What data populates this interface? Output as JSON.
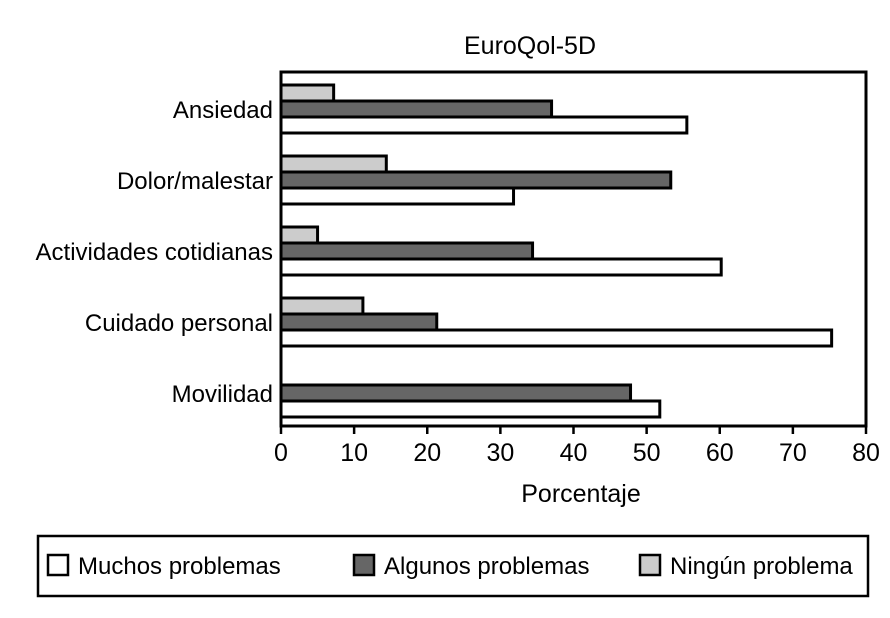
{
  "chart_data": {
    "type": "bar",
    "orientation": "horizontal",
    "title": "EuroQol-5D",
    "xlabel": "Porcentaje",
    "ylabel": "",
    "xlim": [
      0,
      80
    ],
    "xticks": [
      0,
      10,
      20,
      30,
      40,
      50,
      60,
      70,
      80
    ],
    "grid": false,
    "legend_position": "bottom",
    "categories": [
      "Ansiedad",
      "Dolor/malestar",
      "Actividades cotidianas",
      "Cuidado personal",
      "Movilidad"
    ],
    "series": [
      {
        "name": "Muchos problemas",
        "color": "#ffffff",
        "values": [
          55.5,
          31.8,
          60.2,
          75.3,
          51.8
        ]
      },
      {
        "name": "Algunos problemas",
        "color": "#666666",
        "values": [
          37.0,
          53.3,
          34.4,
          21.3,
          47.8
        ]
      },
      {
        "name": "Ningún problema",
        "color": "#cccccc",
        "values": [
          7.2,
          14.4,
          5.0,
          11.2,
          0
        ]
      }
    ]
  }
}
